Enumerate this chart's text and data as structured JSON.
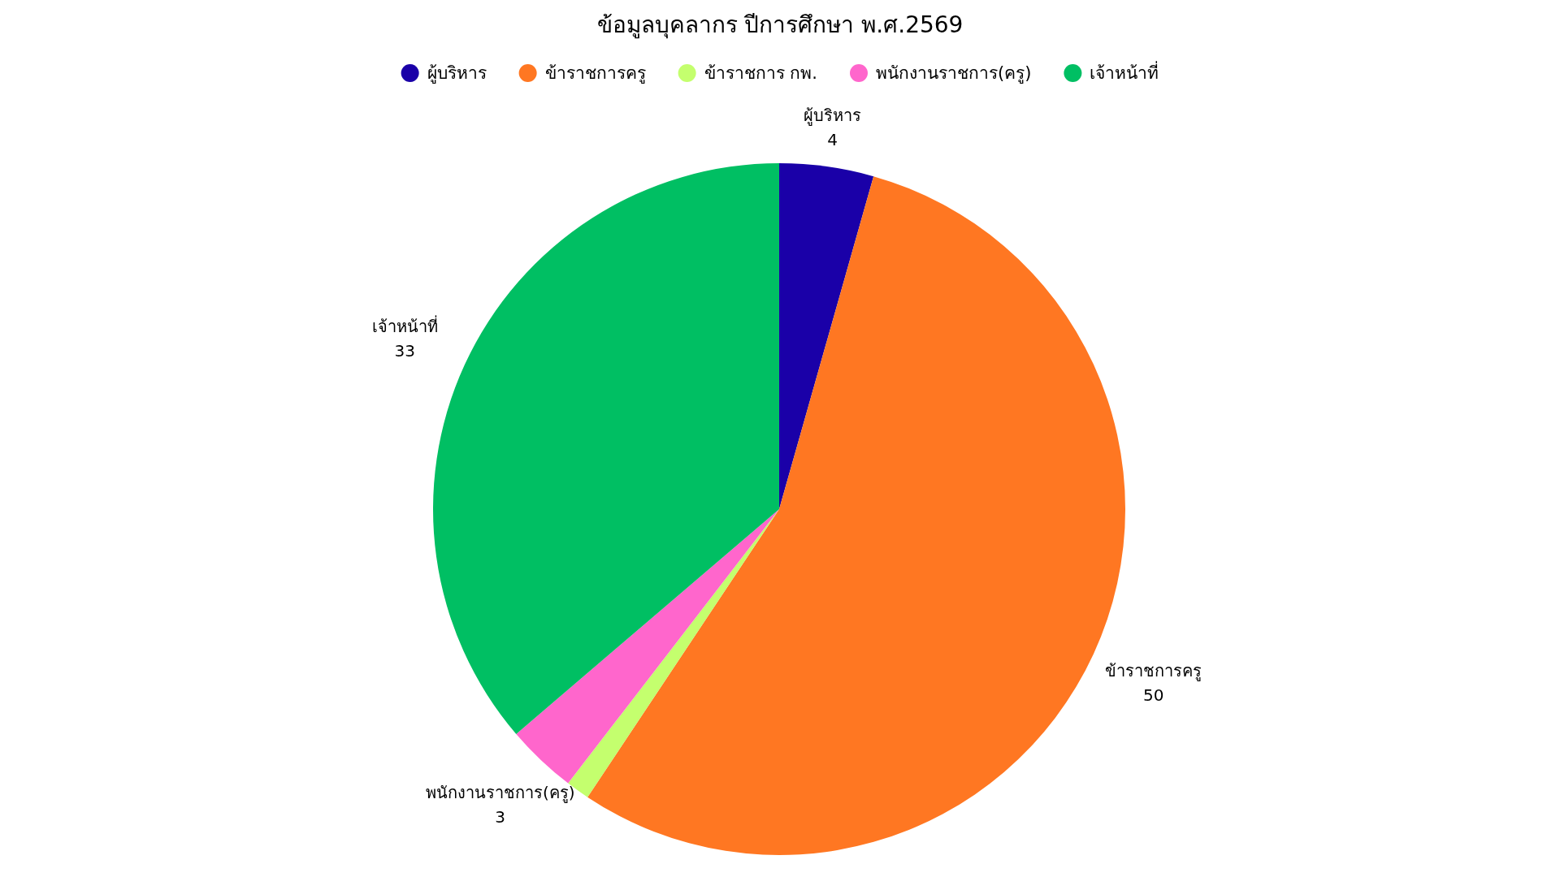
{
  "chart_data": {
    "type": "pie",
    "title": "ข้อมูลบุคลากร ปีการศึกษา พ.ศ.2569",
    "categories": [
      "ผู้บริหาร",
      "ข้าราชการครู",
      "ข้าราชการ กพ.",
      "พนักงานราชการ(ครู)",
      "เจ้าหน้าที่"
    ],
    "values": [
      4,
      50,
      1,
      3,
      33
    ],
    "value_labels": [
      "4",
      "50",
      null,
      "3",
      "33"
    ],
    "colors": [
      "#1a00a8",
      "#ff7722",
      "#c4ff6e",
      "#ff66cc",
      "#00bf63"
    ],
    "legend": "top"
  }
}
